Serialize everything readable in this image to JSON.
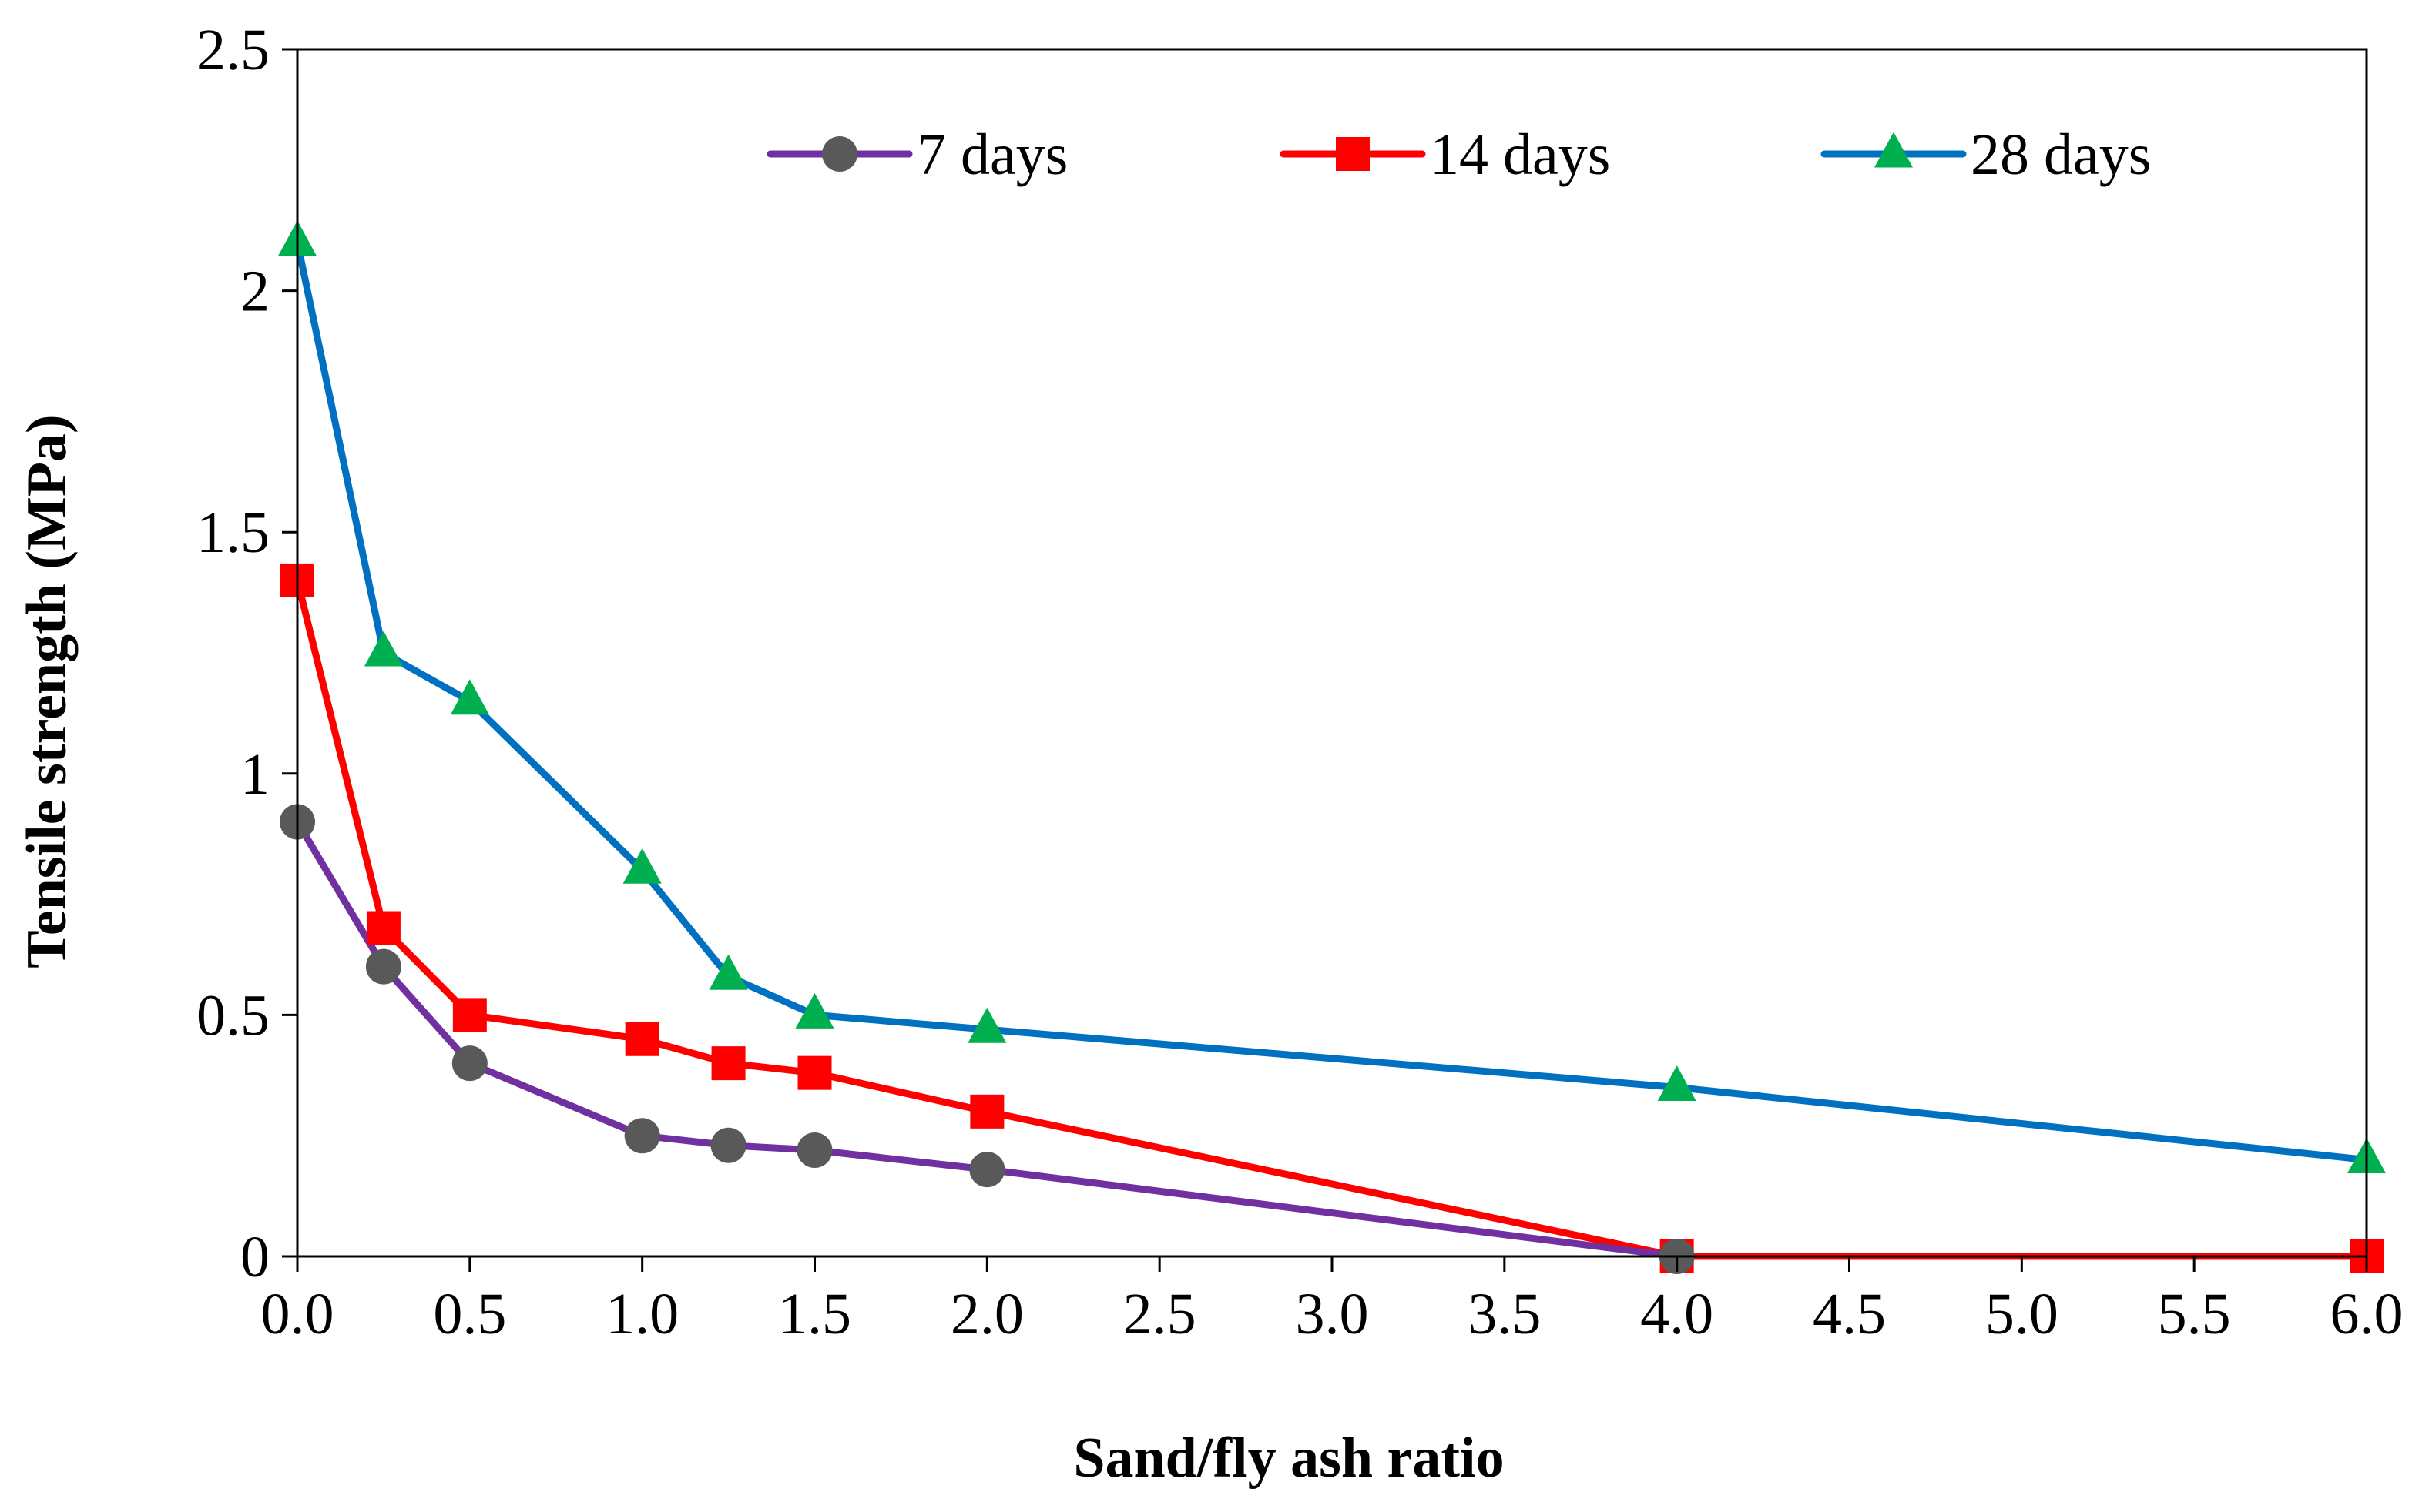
{
  "chart_data": {
    "type": "line",
    "title": "",
    "xlabel": "Sand/fly ash ratio",
    "ylabel": "Tensile strength (MPa)",
    "xlim": [
      0,
      6
    ],
    "ylim": [
      0,
      2.5
    ],
    "x_ticks": [
      "0.0",
      "0.5",
      "1.0",
      "1.5",
      "2.0",
      "2.5",
      "3.0",
      "3.5",
      "4.0",
      "4.5",
      "5.0",
      "5.5",
      "6.0"
    ],
    "y_ticks": [
      "0",
      "0.5",
      "1",
      "1.5",
      "2",
      "2.5"
    ],
    "grid": false,
    "legend_position": "top",
    "series": [
      {
        "name": "7 days",
        "color": "#7030A0",
        "marker": "circle",
        "marker_color": "#595959",
        "x": [
          0,
          0.25,
          0.5,
          1.0,
          1.25,
          1.5,
          2.0,
          4.0
        ],
        "y": [
          0.9,
          0.6,
          0.4,
          0.25,
          0.23,
          0.22,
          0.18,
          0
        ]
      },
      {
        "name": "14 days",
        "color": "#FF0000",
        "marker": "square",
        "marker_color": "#FF0000",
        "x": [
          0,
          0.25,
          0.5,
          1.0,
          1.25,
          1.5,
          2.0,
          4.0,
          6.0
        ],
        "y": [
          1.4,
          0.68,
          0.5,
          0.45,
          0.4,
          0.38,
          0.3,
          0,
          0
        ]
      },
      {
        "name": "28 days",
        "color": "#0070C0",
        "marker": "triangle",
        "marker_color": "#00B050",
        "x": [
          0,
          0.25,
          0.5,
          1.0,
          1.25,
          1.5,
          2.0,
          4.0,
          6.0
        ],
        "y": [
          2.1,
          1.25,
          1.15,
          0.8,
          0.58,
          0.5,
          0.47,
          0.35,
          0.2
        ]
      }
    ]
  }
}
